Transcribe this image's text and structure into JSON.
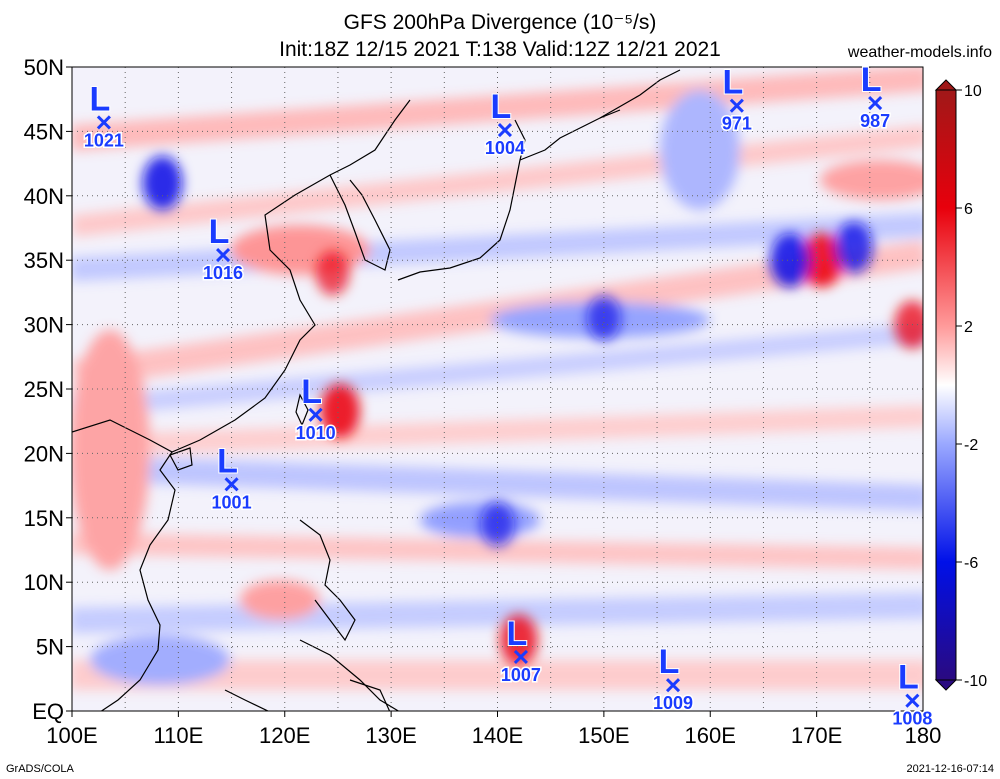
{
  "title_line1": "GFS 200hPa Divergence (10⁻⁵/s)",
  "title_line2": "Init:18Z 12/15 2021 T:138 Valid:12Z 12/21 2021",
  "site": "weather-models.info",
  "footer_left": "GrADS/COLA",
  "footer_right": "2021-12-16-07:14",
  "map": {
    "lon_range": [
      100,
      180
    ],
    "lat_range": [
      0,
      50
    ],
    "lat_labels": [
      "EQ",
      "5N",
      "10N",
      "15N",
      "20N",
      "25N",
      "30N",
      "35N",
      "40N",
      "45N",
      "50N"
    ],
    "lon_labels": [
      "100E",
      "110E",
      "120E",
      "130E",
      "140E",
      "150E",
      "160E",
      "170E",
      "180"
    ]
  },
  "colorbar": {
    "ticks": [
      "10",
      "6",
      "2",
      "-2",
      "-6",
      "-10"
    ],
    "range": [
      -10,
      10
    ]
  },
  "lows": [
    {
      "label": "1021",
      "lon": 103.0,
      "lat": 45.7
    },
    {
      "label": "1004",
      "lon": 140.7,
      "lat": 45.1
    },
    {
      "label": "971",
      "lon": 162.5,
      "lat": 47.0
    },
    {
      "label": "987",
      "lon": 175.5,
      "lat": 47.2
    },
    {
      "label": "1016",
      "lon": 114.2,
      "lat": 35.4
    },
    {
      "label": "1010",
      "lon": 122.9,
      "lat": 23.0
    },
    {
      "label": "1001",
      "lon": 115.0,
      "lat": 17.6
    },
    {
      "label": "1007",
      "lon": 142.2,
      "lat": 4.2
    },
    {
      "label": "1009",
      "lon": 156.5,
      "lat": 2.0
    },
    {
      "label": "1008",
      "lon": 179.0,
      "lat": 0.8
    }
  ],
  "divergence_features": [
    {
      "kind": "divergence",
      "lon": 125.2,
      "lat": 23.3,
      "strength": 6
    },
    {
      "kind": "convergence",
      "lon": 108.5,
      "lat": 41.0,
      "strength": -6
    },
    {
      "kind": "divergence",
      "lon": 170.5,
      "lat": 35.0,
      "strength": 6
    },
    {
      "kind": "convergence",
      "lon": 167.5,
      "lat": 35.0,
      "strength": -6
    },
    {
      "kind": "convergence",
      "lon": 173.5,
      "lat": 36.0,
      "strength": -5
    },
    {
      "kind": "divergence",
      "lon": 142.0,
      "lat": 5.5,
      "strength": 5
    },
    {
      "kind": "divergence",
      "lon": 179.0,
      "lat": 30.0,
      "strength": 4
    },
    {
      "kind": "divergence",
      "lon": 124.5,
      "lat": 34.0,
      "strength": 3
    },
    {
      "kind": "convergence",
      "lon": 150.0,
      "lat": 30.5,
      "strength": -3
    },
    {
      "kind": "convergence",
      "lon": 140.0,
      "lat": 14.5,
      "strength": -3
    }
  ]
}
